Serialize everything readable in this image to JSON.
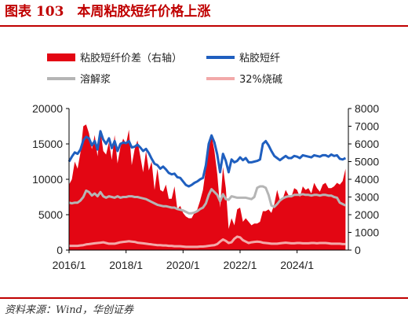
{
  "figure_title": "图表 103　本周粘胶短纤价格上涨",
  "source": "资料来源：Wind，华创证券",
  "chart_data": {
    "type": "line",
    "x_tick_labels": [
      "2016/1",
      "2018/1",
      "2020/1",
      "2022/1",
      "2024/1"
    ],
    "x_tick_years": [
      2016,
      2018,
      2020,
      2022,
      2024
    ],
    "xlim": [
      2016.0,
      2025.8
    ],
    "left_axis": {
      "ylim": [
        0,
        20000
      ],
      "ticks": [
        0,
        5000,
        10000,
        15000,
        20000
      ]
    },
    "right_axis": {
      "ylim": [
        0,
        8000
      ],
      "ticks": [
        0,
        1000,
        2000,
        3000,
        4000,
        5000,
        6000,
        7000,
        8000
      ]
    },
    "legend": [
      "粘胶短纤价差（右轴）",
      "粘胶短纤",
      "溶解浆",
      "32%烧碱"
    ],
    "colors": {
      "spread": "#e30613",
      "viscose": "#1f5fbf",
      "pulp": "#b5b5b5",
      "soda": "#f2a9a9"
    },
    "series": [
      {
        "name": "粘胶短纤价差（右轴）",
        "axis": "right",
        "style": "area",
        "x": [
          2016.0,
          2016.1,
          2016.2,
          2016.3,
          2016.4,
          2016.5,
          2016.6,
          2016.7,
          2016.8,
          2016.9,
          2017.0,
          2017.1,
          2017.2,
          2017.3,
          2017.4,
          2017.5,
          2017.6,
          2017.7,
          2017.8,
          2017.9,
          2018.0,
          2018.1,
          2018.2,
          2018.3,
          2018.4,
          2018.5,
          2018.6,
          2018.7,
          2018.8,
          2018.9,
          2019.0,
          2019.1,
          2019.2,
          2019.3,
          2019.4,
          2019.5,
          2019.6,
          2019.7,
          2019.8,
          2019.9,
          2020.0,
          2020.1,
          2020.2,
          2020.3,
          2020.4,
          2020.5,
          2020.6,
          2020.7,
          2020.8,
          2020.9,
          2021.0,
          2021.1,
          2021.2,
          2021.3,
          2021.4,
          2021.5,
          2021.6,
          2021.7,
          2021.8,
          2021.9,
          2022.0,
          2022.1,
          2022.2,
          2022.3,
          2022.4,
          2022.5,
          2022.6,
          2022.7,
          2022.8,
          2022.9,
          2023.0,
          2023.1,
          2023.2,
          2023.3,
          2023.4,
          2023.5,
          2023.6,
          2023.7,
          2023.8,
          2023.9,
          2024.0,
          2024.1,
          2024.2,
          2024.3,
          2024.4,
          2024.5,
          2024.6,
          2024.7,
          2024.8,
          2024.9,
          2025.0,
          2025.1,
          2025.2,
          2025.3,
          2025.4,
          2025.5,
          2025.6,
          2025.7
        ],
        "values": [
          3700,
          4000,
          5000,
          4600,
          5500,
          7000,
          7100,
          6600,
          5700,
          6500,
          5300,
          6800,
          5600,
          5400,
          6100,
          5100,
          6500,
          4900,
          5800,
          6300,
          6000,
          6800,
          4800,
          5700,
          6200,
          5300,
          4400,
          5600,
          4500,
          5000,
          3400,
          4600,
          3400,
          3300,
          3700,
          2900,
          2900,
          3600,
          2300,
          2500,
          2100,
          1900,
          1800,
          1800,
          2100,
          2300,
          2800,
          3400,
          4600,
          6100,
          6500,
          5600,
          4300,
          2400,
          4700,
          3500,
          1200,
          1800,
          1400,
          2300,
          2400,
          1600,
          1800,
          1600,
          1400,
          1500,
          1500,
          1600,
          2200,
          2200,
          2300,
          2100,
          2600,
          3400,
          2800,
          2900,
          3400,
          3100,
          3000,
          3500,
          3400,
          3000,
          3600,
          3400,
          3500,
          3200,
          3800,
          3500,
          3300,
          3700,
          3800,
          3500,
          3500,
          3600,
          3800,
          3700,
          3900,
          4600
        ]
      },
      {
        "name": "粘胶短纤",
        "axis": "left",
        "style": "line",
        "x": [
          2016.0,
          2016.1,
          2016.2,
          2016.3,
          2016.4,
          2016.5,
          2016.6,
          2016.7,
          2016.8,
          2016.9,
          2017.0,
          2017.1,
          2017.2,
          2017.3,
          2017.4,
          2017.5,
          2017.6,
          2017.7,
          2017.8,
          2017.9,
          2018.0,
          2018.1,
          2018.2,
          2018.3,
          2018.4,
          2018.5,
          2018.6,
          2018.7,
          2018.8,
          2018.9,
          2019.0,
          2019.1,
          2019.2,
          2019.3,
          2019.4,
          2019.5,
          2019.6,
          2019.7,
          2019.8,
          2019.9,
          2020.0,
          2020.1,
          2020.2,
          2020.3,
          2020.4,
          2020.5,
          2020.6,
          2020.7,
          2020.8,
          2020.9,
          2021.0,
          2021.1,
          2021.2,
          2021.3,
          2021.4,
          2021.5,
          2021.6,
          2021.7,
          2021.8,
          2021.9,
          2022.0,
          2022.1,
          2022.2,
          2022.3,
          2022.4,
          2022.5,
          2022.6,
          2022.7,
          2022.8,
          2022.9,
          2023.0,
          2023.1,
          2023.2,
          2023.3,
          2023.4,
          2023.5,
          2023.6,
          2023.7,
          2023.8,
          2023.9,
          2024.0,
          2024.1,
          2024.2,
          2024.3,
          2024.4,
          2024.5,
          2024.6,
          2024.7,
          2024.8,
          2024.9,
          2025.0,
          2025.1,
          2025.2,
          2025.3,
          2025.4,
          2025.5,
          2025.6,
          2025.7
        ],
        "values": [
          12500,
          13200,
          13800,
          13600,
          14200,
          15500,
          16000,
          15800,
          14800,
          15400,
          14200,
          16800,
          15600,
          15000,
          15800,
          14400,
          15400,
          14000,
          15000,
          15200,
          15100,
          15400,
          14500,
          14600,
          14900,
          14500,
          14000,
          14300,
          13700,
          12900,
          12200,
          12000,
          11500,
          11800,
          11400,
          10900,
          10700,
          10800,
          10300,
          10200,
          9700,
          9200,
          9000,
          9200,
          9500,
          9700,
          10000,
          10200,
          12000,
          15000,
          16200,
          15200,
          13500,
          11000,
          13600,
          12600,
          11000,
          12800,
          12400,
          12600,
          13100,
          12700,
          13000,
          12400,
          12400,
          12500,
          12600,
          12800,
          15000,
          15400,
          14800,
          14000,
          13300,
          13000,
          12700,
          13000,
          13300,
          13000,
          13000,
          13300,
          13200,
          13000,
          13400,
          13300,
          13200,
          13100,
          13400,
          13300,
          13200,
          13400,
          13400,
          13200,
          13500,
          13300,
          13400,
          12900,
          12800,
          13000
        ]
      },
      {
        "name": "溶解浆",
        "axis": "left",
        "style": "line",
        "x": [
          2016.0,
          2016.1,
          2016.2,
          2016.3,
          2016.4,
          2016.5,
          2016.6,
          2016.7,
          2016.8,
          2016.9,
          2017.0,
          2017.1,
          2017.2,
          2017.3,
          2017.4,
          2017.5,
          2017.6,
          2017.7,
          2017.8,
          2017.9,
          2018.0,
          2018.1,
          2018.2,
          2018.3,
          2018.4,
          2018.5,
          2018.6,
          2018.7,
          2018.8,
          2018.9,
          2019.0,
          2019.1,
          2019.2,
          2019.3,
          2019.4,
          2019.5,
          2019.6,
          2019.7,
          2019.8,
          2019.9,
          2020.0,
          2020.1,
          2020.2,
          2020.3,
          2020.4,
          2020.5,
          2020.6,
          2020.7,
          2020.8,
          2020.9,
          2021.0,
          2021.1,
          2021.2,
          2021.3,
          2021.4,
          2021.5,
          2021.6,
          2021.7,
          2021.8,
          2021.9,
          2022.0,
          2022.1,
          2022.2,
          2022.3,
          2022.4,
          2022.5,
          2022.6,
          2022.7,
          2022.8,
          2022.9,
          2023.0,
          2023.1,
          2023.2,
          2023.3,
          2023.4,
          2023.5,
          2023.6,
          2023.7,
          2023.8,
          2023.9,
          2024.0,
          2024.1,
          2024.2,
          2024.3,
          2024.4,
          2024.5,
          2024.6,
          2024.7,
          2024.8,
          2024.9,
          2025.0,
          2025.1,
          2025.2,
          2025.3,
          2025.4,
          2025.5,
          2025.6,
          2025.7
        ],
        "values": [
          6700,
          6600,
          6700,
          6700,
          7000,
          7500,
          8400,
          8200,
          7700,
          8000,
          7600,
          8200,
          7600,
          7400,
          7600,
          7500,
          7400,
          7600,
          7400,
          7500,
          7500,
          7600,
          7600,
          7500,
          7500,
          7400,
          7300,
          7200,
          7000,
          6800,
          6600,
          6400,
          6300,
          6200,
          6200,
          6100,
          6000,
          6000,
          5800,
          5700,
          5600,
          5400,
          5200,
          5200,
          5300,
          5500,
          5800,
          6000,
          6600,
          7800,
          8600,
          8200,
          7800,
          6900,
          7900,
          7200,
          7100,
          7600,
          7500,
          7400,
          7400,
          7400,
          7400,
          7300,
          7200,
          7500,
          8800,
          9000,
          9000,
          8800,
          7800,
          6300,
          6100,
          6500,
          7000,
          7300,
          7500,
          7600,
          7600,
          7800,
          7800,
          7800,
          7900,
          7800,
          7800,
          7700,
          7800,
          7800,
          7700,
          7800,
          7800,
          7700,
          7700,
          7500,
          7400,
          6700,
          6500,
          6300
        ]
      },
      {
        "name": "32%烧碱",
        "axis": "left",
        "style": "line",
        "x": [
          2016.0,
          2016.1,
          2016.2,
          2016.3,
          2016.4,
          2016.5,
          2016.6,
          2016.7,
          2016.8,
          2016.9,
          2017.0,
          2017.1,
          2017.2,
          2017.3,
          2017.4,
          2017.5,
          2017.6,
          2017.7,
          2017.8,
          2017.9,
          2018.0,
          2018.1,
          2018.2,
          2018.3,
          2018.4,
          2018.5,
          2018.6,
          2018.7,
          2018.8,
          2018.9,
          2019.0,
          2019.1,
          2019.2,
          2019.3,
          2019.4,
          2019.5,
          2019.6,
          2019.7,
          2019.8,
          2019.9,
          2020.0,
          2020.1,
          2020.2,
          2020.3,
          2020.4,
          2020.5,
          2020.6,
          2020.7,
          2020.8,
          2020.9,
          2021.0,
          2021.1,
          2021.2,
          2021.3,
          2021.4,
          2021.5,
          2021.6,
          2021.7,
          2021.8,
          2021.9,
          2022.0,
          2022.1,
          2022.2,
          2022.3,
          2022.4,
          2022.5,
          2022.6,
          2022.7,
          2022.8,
          2022.9,
          2023.0,
          2023.1,
          2023.2,
          2023.3,
          2023.4,
          2023.5,
          2023.6,
          2023.7,
          2023.8,
          2023.9,
          2024.0,
          2024.1,
          2024.2,
          2024.3,
          2024.4,
          2024.5,
          2024.6,
          2024.7,
          2024.8,
          2024.9,
          2025.0,
          2025.1,
          2025.2,
          2025.3,
          2025.4,
          2025.5,
          2025.6,
          2025.7
        ],
        "values": [
          600,
          600,
          600,
          600,
          650,
          700,
          800,
          850,
          900,
          950,
          1000,
          1050,
          1100,
          1000,
          900,
          900,
          900,
          1000,
          1100,
          1150,
          1200,
          1250,
          1200,
          1150,
          1050,
          1000,
          950,
          900,
          850,
          800,
          750,
          700,
          700,
          650,
          650,
          600,
          600,
          550,
          550,
          550,
          500,
          450,
          450,
          450,
          450,
          450,
          500,
          500,
          550,
          600,
          650,
          700,
          850,
          1200,
          1500,
          1300,
          1000,
          1100,
          1600,
          1900,
          1800,
          1400,
          1200,
          1000,
          1100,
          1150,
          1200,
          1150,
          1050,
          1000,
          950,
          900,
          900,
          900,
          950,
          1000,
          1050,
          1000,
          950,
          950,
          1000,
          1000,
          950,
          950,
          950,
          1000,
          1000,
          950,
          1000,
          1000,
          1000,
          950,
          900,
          900,
          900,
          900,
          850,
          850
        ]
      }
    ]
  }
}
